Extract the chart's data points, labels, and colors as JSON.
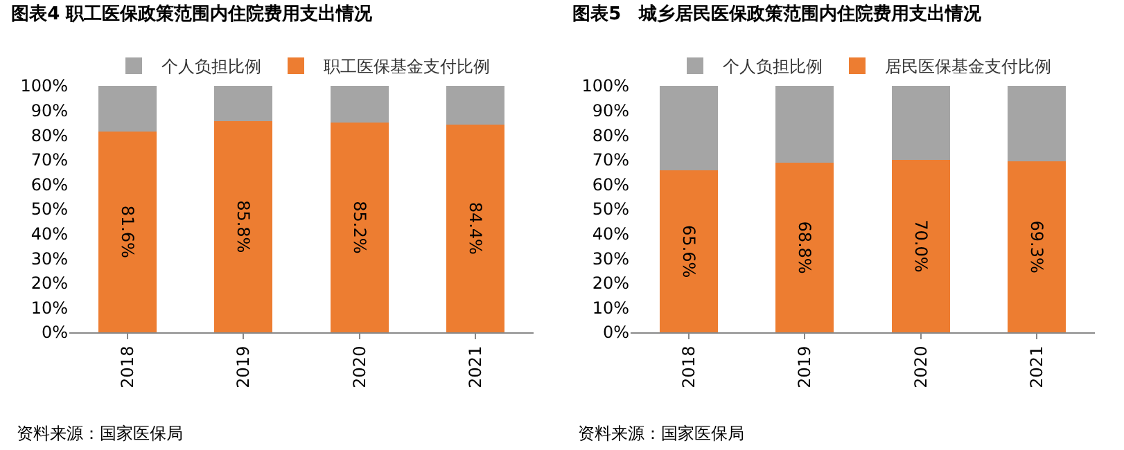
{
  "chart_data": [
    {
      "type": "bar",
      "title": "图表4 职工医保政策范围内住院费用支出情况",
      "categories": [
        "2018",
        "2019",
        "2020",
        "2021"
      ],
      "stacked": true,
      "legend": "top",
      "ylim": [
        0,
        100
      ],
      "yticks": [
        {
          "value": 0,
          "label": "0%"
        },
        {
          "value": 10,
          "label": "10%"
        },
        {
          "value": 20,
          "label": "20%"
        },
        {
          "value": 30,
          "label": "30%"
        },
        {
          "value": 40,
          "label": "40%"
        },
        {
          "value": 50,
          "label": "50%"
        },
        {
          "value": 60,
          "label": "60%"
        },
        {
          "value": 70,
          "label": "70%"
        },
        {
          "value": 80,
          "label": "80%"
        },
        {
          "value": 90,
          "label": "90%"
        },
        {
          "value": 100,
          "label": "100%"
        }
      ],
      "series": [
        {
          "name": "职工医保基金支付比例",
          "color": "#ed7d31",
          "values": [
            81.6,
            85.8,
            85.2,
            84.4
          ],
          "value_labels": [
            "81.6%",
            "85.8%",
            "85.2%",
            "84.4%"
          ]
        },
        {
          "name": "个人负担比例",
          "color": "#a5a5a5",
          "values": [
            18.4,
            14.2,
            14.8,
            15.6
          ]
        }
      ],
      "annotations": [
        "资料来源：国家医保局"
      ]
    },
    {
      "type": "bar",
      "title": "图表5　城乡居民医保政策范围内住院费用支出情况",
      "categories": [
        "2018",
        "2019",
        "2020",
        "2021"
      ],
      "stacked": true,
      "legend": "top",
      "ylim": [
        0,
        100
      ],
      "yticks": [
        {
          "value": 0,
          "label": "0%"
        },
        {
          "value": 10,
          "label": "10%"
        },
        {
          "value": 20,
          "label": "20%"
        },
        {
          "value": 30,
          "label": "30%"
        },
        {
          "value": 40,
          "label": "40%"
        },
        {
          "value": 50,
          "label": "50%"
        },
        {
          "value": 60,
          "label": "60%"
        },
        {
          "value": 70,
          "label": "70%"
        },
        {
          "value": 80,
          "label": "80%"
        },
        {
          "value": 90,
          "label": "90%"
        },
        {
          "value": 100,
          "label": "100%"
        }
      ],
      "series": [
        {
          "name": "居民医保基金支付比例",
          "color": "#ed7d31",
          "values": [
            65.6,
            68.8,
            70.0,
            69.3
          ],
          "value_labels": [
            "65.6%",
            "68.8%",
            "70.0%",
            "69.3%"
          ]
        },
        {
          "name": "个人负担比例",
          "color": "#a5a5a5",
          "values": [
            34.4,
            31.2,
            30.0,
            30.7
          ]
        }
      ],
      "annotations": [
        "资料来源：国家医保局"
      ]
    }
  ]
}
